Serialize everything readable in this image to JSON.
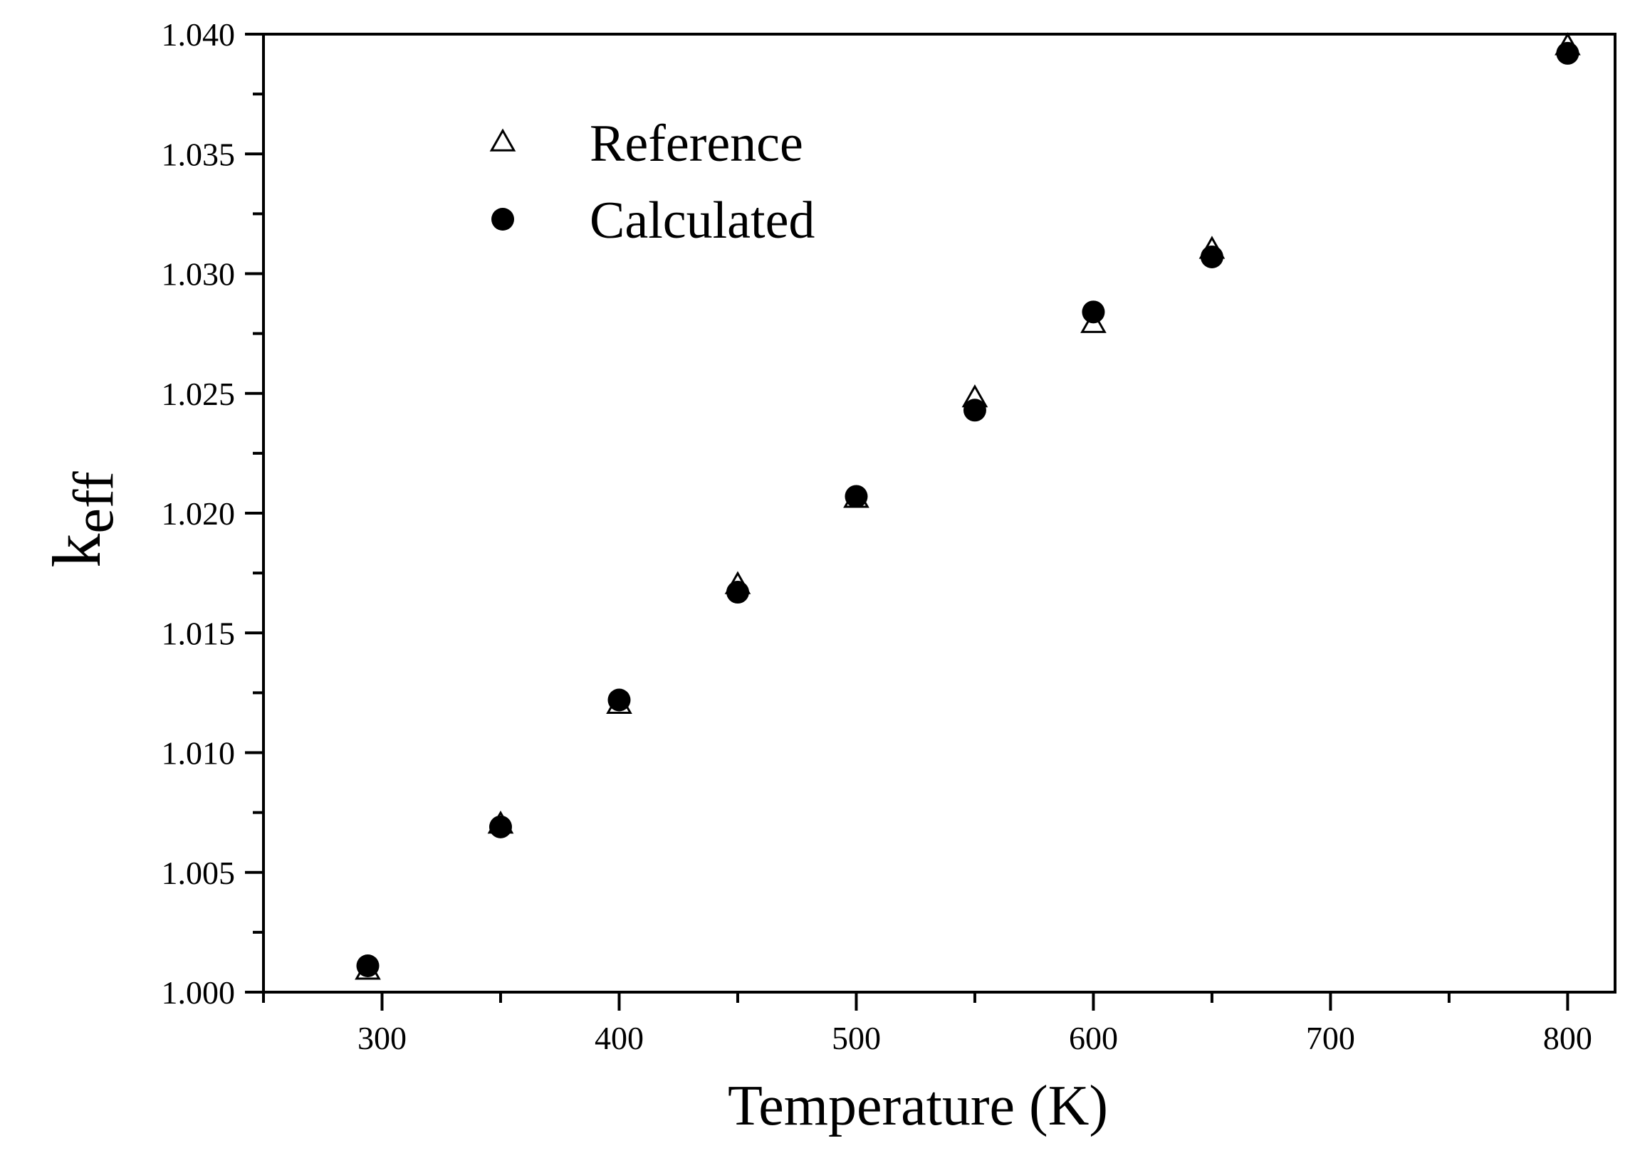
{
  "chart_data": {
    "type": "scatter",
    "title": "",
    "xlabel": "Temperature (K)",
    "ylabel": {
      "main": "k",
      "sub": "eff"
    },
    "xlim": [
      250,
      820
    ],
    "ylim": [
      1.0,
      1.04
    ],
    "xticks": [
      300,
      400,
      500,
      600,
      700,
      800
    ],
    "xtick_labels": [
      "300",
      "400",
      "500",
      "600",
      "700",
      "800"
    ],
    "xminor": [
      250,
      350,
      450,
      550,
      650,
      750
    ],
    "yticks": [
      1.0,
      1.005,
      1.01,
      1.015,
      1.02,
      1.025,
      1.03,
      1.035,
      1.04
    ],
    "ytick_labels": [
      "1.000",
      "1.005",
      "1.010",
      "1.015",
      "1.020",
      "1.025",
      "1.030",
      "1.035",
      "1.040"
    ],
    "yminor": [
      1.0025,
      1.0075,
      1.0125,
      1.0175,
      1.0225,
      1.0275,
      1.0325,
      1.0375
    ],
    "grid": false,
    "legend_position": "top-left",
    "series": [
      {
        "name": "Reference",
        "marker": "open-triangle",
        "color": "#000000",
        "x": [
          294,
          350,
          400,
          450,
          500,
          550,
          600,
          650,
          800
        ],
        "y": [
          1.0009,
          1.007,
          1.012,
          1.017,
          1.0206,
          1.0248,
          1.0279,
          1.031,
          1.0395
        ]
      },
      {
        "name": "Calculated",
        "marker": "filled-circle",
        "color": "#000000",
        "x": [
          294,
          350,
          400,
          450,
          500,
          550,
          600,
          650,
          800
        ],
        "y": [
          1.0011,
          1.0069,
          1.0122,
          1.0167,
          1.0207,
          1.0243,
          1.0284,
          1.0307,
          1.0392
        ]
      }
    ]
  }
}
